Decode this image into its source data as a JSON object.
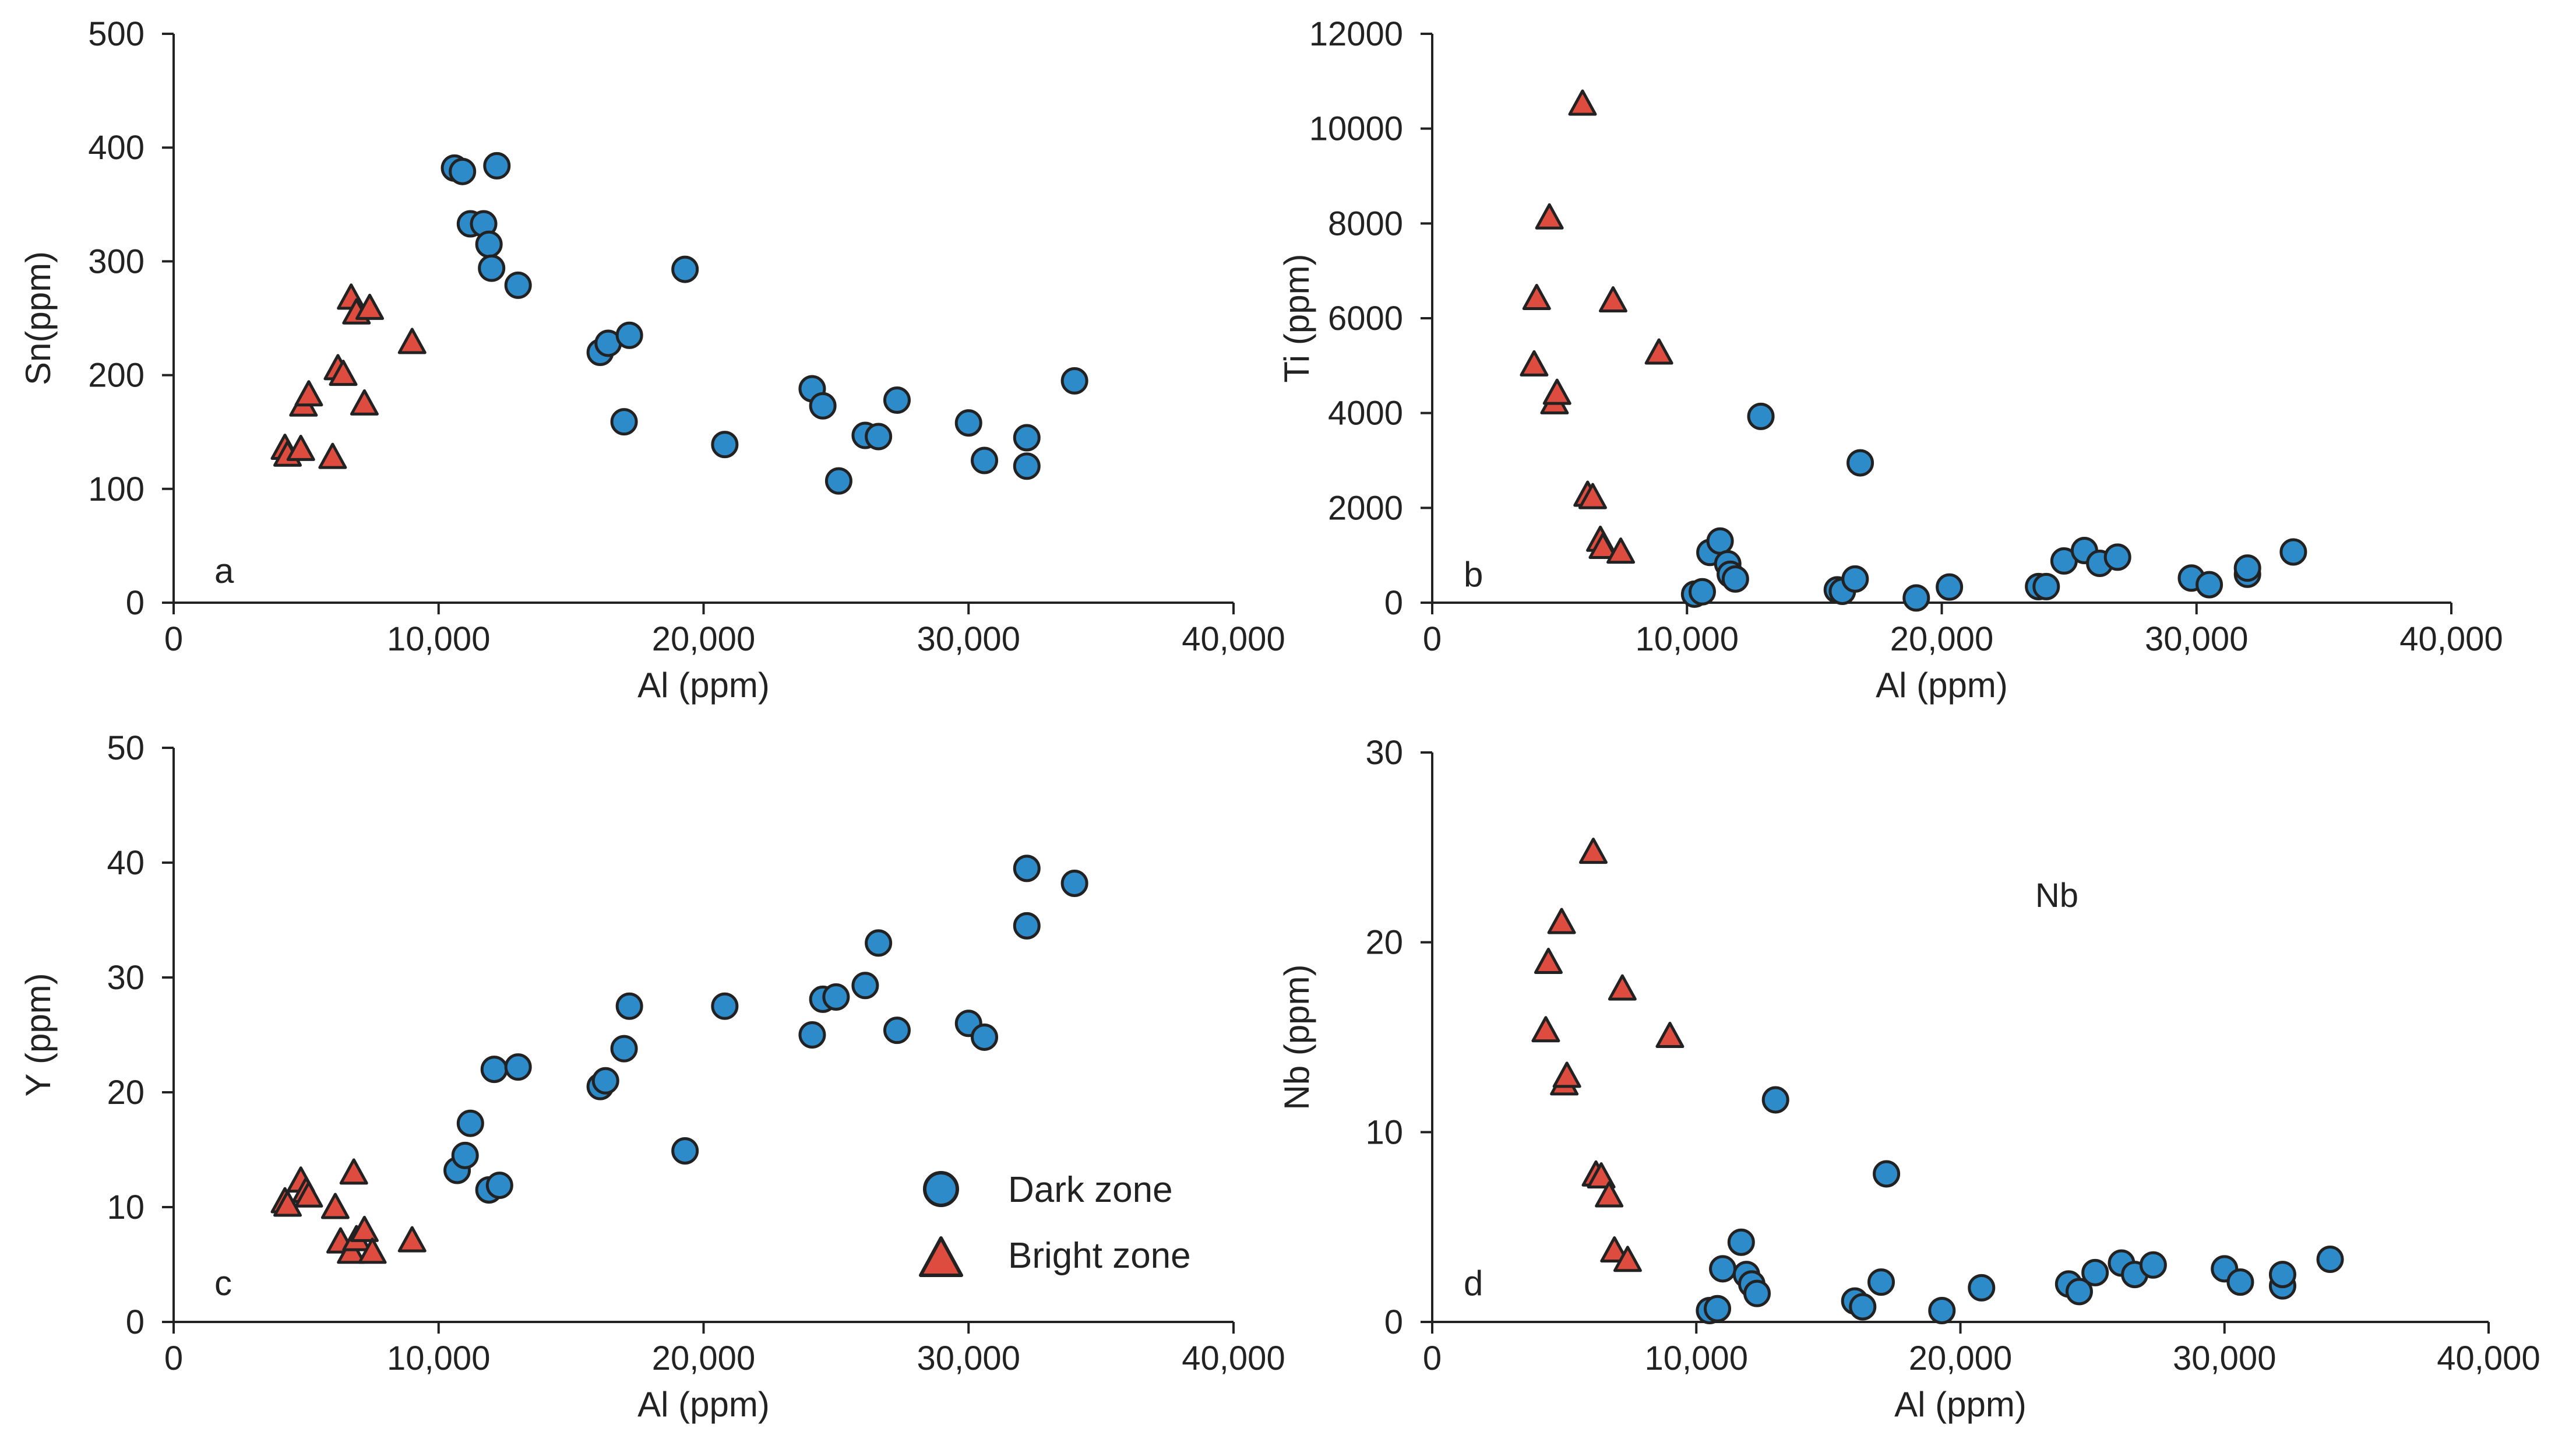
{
  "colors": {
    "dark_zone": "#2e8bc9",
    "bright_zone": "#dd4c3f",
    "marker_stroke": "#222222",
    "axis": "#222222"
  },
  "legend": {
    "dark_label": "Dark zone",
    "bright_label": "Bright zone"
  },
  "chart_data": [
    {
      "type": "scatter",
      "panel_letter": "a",
      "xlabel": "Al (ppm)",
      "ylabel": "Sn(ppm)",
      "xlim": [
        0,
        40000
      ],
      "ylim": [
        0,
        500
      ],
      "xticks": [
        0,
        10000,
        20000,
        30000,
        40000
      ],
      "xtick_labels": [
        "0",
        "10,000",
        "20,000",
        "30,000",
        "40,000"
      ],
      "yticks": [
        0,
        100,
        200,
        300,
        400,
        500
      ],
      "ytick_labels": [
        "0",
        "100",
        "200",
        "300",
        "400",
        "500"
      ],
      "series": [
        {
          "name": "Dark zone",
          "marker": "circle",
          "x": [
            10600,
            10900,
            11200,
            11700,
            11900,
            12000,
            12200,
            13000,
            16100,
            16400,
            17000,
            17200,
            19300,
            20800,
            24100,
            24500,
            25100,
            26100,
            26600,
            27300,
            30000,
            30600,
            32200,
            32200,
            34000
          ],
          "y": [
            382,
            379,
            333,
            333,
            315,
            294,
            384,
            279,
            220,
            228,
            159,
            235,
            293,
            139,
            188,
            173,
            107,
            147,
            146,
            178,
            158,
            125,
            120,
            145,
            195
          ]
        },
        {
          "name": "Bright zone",
          "marker": "triangle",
          "x": [
            4200,
            4300,
            4800,
            4900,
            5100,
            6000,
            6200,
            6400,
            6700,
            6900,
            7200,
            7400,
            9000
          ],
          "y": [
            135,
            129,
            134,
            173,
            182,
            127,
            205,
            200,
            267,
            254,
            174,
            258,
            228
          ]
        }
      ]
    },
    {
      "type": "scatter",
      "panel_letter": "b",
      "xlabel": "Al (ppm)",
      "ylabel": "Ti (ppm)",
      "xlim": [
        0,
        40000
      ],
      "ylim": [
        0,
        12000
      ],
      "xticks": [
        0,
        10000,
        20000,
        30000,
        40000
      ],
      "xtick_labels": [
        "0",
        "10,000",
        "20,000",
        "30,000",
        "40,000"
      ],
      "yticks": [
        0,
        2000,
        4000,
        6000,
        8000,
        10000,
        12000
      ],
      "ytick_labels": [
        "0",
        "2000",
        "4000",
        "6000",
        "8000",
        "10000",
        "12000"
      ],
      "series": [
        {
          "name": "Dark zone",
          "marker": "circle",
          "x": [
            10300,
            10600,
            10900,
            11300,
            11600,
            11700,
            11900,
            12900,
            15900,
            16100,
            16600,
            16800,
            19000,
            20300,
            23800,
            24100,
            24800,
            25600,
            26200,
            26900,
            29800,
            30500,
            32000,
            32000,
            33800
          ],
          "y": [
            180,
            230,
            1060,
            1300,
            820,
            600,
            500,
            3930,
            270,
            240,
            500,
            2950,
            100,
            330,
            340,
            340,
            880,
            1100,
            830,
            960,
            520,
            380,
            600,
            730,
            1070
          ]
        },
        {
          "name": "Bright zone",
          "marker": "triangle",
          "x": [
            4000,
            4100,
            4600,
            4800,
            4900,
            6100,
            6300,
            6600,
            6700,
            7100,
            7400,
            8900,
            5900
          ],
          "y": [
            5000,
            6400,
            8100,
            4200,
            4400,
            2250,
            2200,
            1300,
            1150,
            6350,
            1050,
            5250,
            10500
          ]
        }
      ]
    },
    {
      "type": "scatter",
      "panel_letter": "c",
      "xlabel": "Al (ppm)",
      "ylabel": "Y (ppm)",
      "xlim": [
        0,
        40000
      ],
      "ylim": [
        0,
        50
      ],
      "xticks": [
        0,
        10000,
        20000,
        30000,
        40000
      ],
      "xtick_labels": [
        "0",
        "10,000",
        "20,000",
        "30,000",
        "40,000"
      ],
      "yticks": [
        0,
        10,
        20,
        30,
        40,
        50
      ],
      "ytick_labels": [
        "0",
        "10",
        "20",
        "30",
        "40",
        "50"
      ],
      "series": [
        {
          "name": "Dark zone",
          "marker": "circle",
          "x": [
            10700,
            11000,
            11200,
            11900,
            12100,
            12300,
            13000,
            16100,
            16300,
            17000,
            17200,
            19300,
            20800,
            24100,
            24500,
            25000,
            26100,
            26600,
            27300,
            30000,
            30600,
            32200,
            32200,
            34000
          ],
          "y": [
            13.2,
            14.5,
            17.3,
            11.5,
            22.0,
            11.9,
            22.2,
            20.5,
            21.0,
            23.8,
            27.5,
            14.9,
            27.5,
            25.0,
            28.1,
            28.3,
            29.3,
            33.0,
            25.4,
            26.0,
            24.8,
            39.5,
            34.5,
            38.2
          ]
        },
        {
          "name": "Bright zone",
          "marker": "triangle",
          "x": [
            4200,
            4300,
            4800,
            5000,
            5100,
            6100,
            6300,
            6700,
            6800,
            6900,
            7200,
            7500,
            9000
          ],
          "y": [
            10.4,
            10.1,
            12.2,
            11.3,
            10.9,
            9.9,
            6.9,
            6.0,
            12.9,
            7.1,
            7.9,
            6.0,
            7.0
          ]
        }
      ]
    },
    {
      "type": "scatter",
      "panel_letter": "d",
      "annotation": "Nb",
      "xlabel": "Al (ppm)",
      "ylabel": "Nb (ppm)",
      "xlim": [
        0,
        40000
      ],
      "ylim": [
        0,
        30
      ],
      "xticks": [
        0,
        10000,
        20000,
        30000,
        40000
      ],
      "xtick_labels": [
        "0",
        "10,000",
        "20,000",
        "30,000",
        "40,000"
      ],
      "yticks": [
        0,
        10,
        20,
        30
      ],
      "ytick_labels": [
        "0",
        "10",
        "20",
        "30"
      ],
      "series": [
        {
          "name": "Dark zone",
          "marker": "circle",
          "x": [
            10500,
            10800,
            11000,
            11700,
            11900,
            12100,
            12300,
            13000,
            16000,
            16300,
            17000,
            17200,
            19300,
            20800,
            24100,
            24500,
            25100,
            26100,
            26600,
            27300,
            30000,
            30600,
            32200,
            32200,
            34000
          ],
          "y": [
            0.6,
            0.7,
            2.8,
            4.2,
            2.5,
            2.0,
            1.5,
            11.7,
            1.1,
            0.8,
            2.1,
            7.8,
            0.6,
            1.8,
            2.0,
            1.6,
            2.6,
            3.1,
            2.5,
            3.0,
            2.8,
            2.1,
            1.9,
            2.5,
            3.3
          ]
        },
        {
          "name": "Bright zone",
          "marker": "triangle",
          "x": [
            4300,
            4400,
            4900,
            5000,
            5100,
            6100,
            6200,
            6400,
            6700,
            6900,
            7200,
            7400,
            9000
          ],
          "y": [
            15.3,
            18.9,
            21.0,
            12.5,
            12.9,
            24.7,
            7.7,
            7.6,
            6.6,
            3.7,
            17.5,
            3.2,
            15.0
          ]
        }
      ]
    }
  ]
}
